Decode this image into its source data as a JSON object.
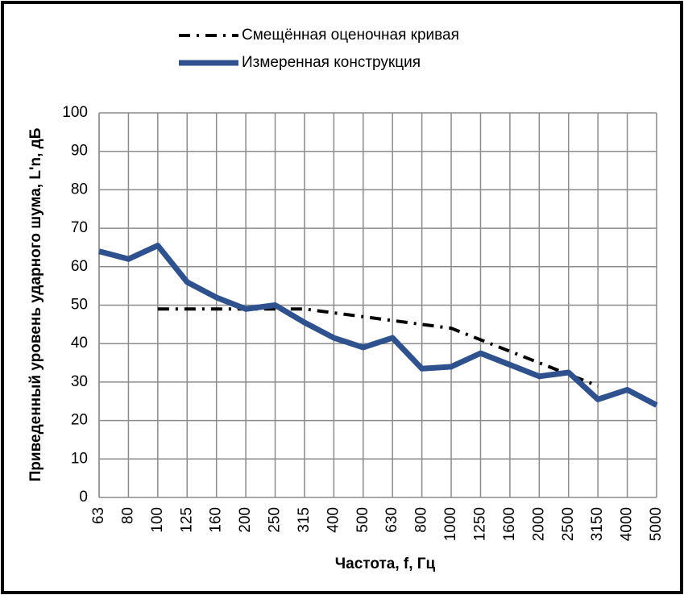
{
  "chart_data": {
    "type": "line",
    "x_label": "Частота, f, Гц",
    "y_label": "Приведенный уровень ударного шума, L'n, дБ",
    "categories": [
      "63",
      "80",
      "100",
      "125",
      "160",
      "200",
      "250",
      "315",
      "400",
      "500",
      "630",
      "800",
      "1000",
      "1250",
      "1600",
      "2000",
      "2500",
      "3150",
      "4000",
      "5000"
    ],
    "series": [
      {
        "name": "Смещённая оценочная кривая",
        "color": "#000000",
        "style": "dash-dot",
        "values": [
          null,
          null,
          49,
          49,
          49,
          49,
          49,
          49,
          48,
          47,
          46,
          45,
          44,
          41,
          38,
          35,
          32,
          29,
          null,
          null
        ]
      },
      {
        "name": "Измеренная конструкция",
        "color": "#2f528f",
        "style": "solid",
        "values": [
          64,
          62,
          65.5,
          56,
          52,
          49,
          50,
          45.5,
          41.5,
          39,
          41.5,
          33.5,
          34,
          37.5,
          34.5,
          31.5,
          32.5,
          25.5,
          28,
          24
        ]
      }
    ],
    "ylim": [
      0,
      100
    ],
    "yticks": [
      0,
      10,
      20,
      30,
      40,
      50,
      60,
      70,
      80,
      90,
      100
    ],
    "grid": true,
    "legend": "top"
  }
}
